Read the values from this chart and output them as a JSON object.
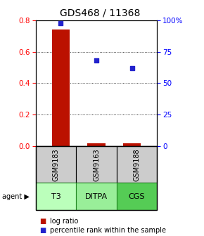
{
  "title": "GDS468 / 11368",
  "samples": [
    "GSM9183",
    "GSM9163",
    "GSM9188"
  ],
  "agents": [
    "T3",
    "DITPA",
    "CGS"
  ],
  "log_ratio": [
    0.74,
    0.02,
    0.02
  ],
  "percentile_rank": [
    97.5,
    68.0,
    62.0
  ],
  "left_ylim": [
    0,
    0.8
  ],
  "right_ylim": [
    0,
    100
  ],
  "left_yticks": [
    0,
    0.2,
    0.4,
    0.6,
    0.8
  ],
  "right_yticks": [
    0,
    25,
    50,
    75,
    100
  ],
  "right_yticklabels": [
    "0",
    "25",
    "50",
    "75",
    "100%"
  ],
  "bar_color": "#bb1100",
  "dot_color": "#2222cc",
  "sample_box_color": "#cccccc",
  "agent_box_color_t3": "#bbffbb",
  "agent_box_color_ditpa": "#99ee99",
  "agent_box_color_cgs": "#55cc55",
  "agent_box_colors": [
    "#bbffbb",
    "#99ee99",
    "#55cc55"
  ],
  "title_fontsize": 10,
  "legend_fontsize": 7,
  "tick_fontsize": 7.5,
  "agent_fontsize": 8,
  "sample_fontsize": 7
}
